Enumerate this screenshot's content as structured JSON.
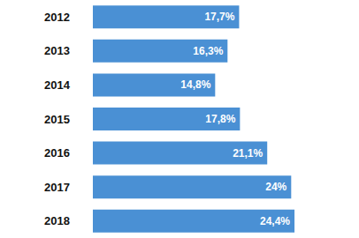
{
  "chart_data": {
    "type": "bar",
    "orientation": "horizontal",
    "categories": [
      "2012",
      "2013",
      "2014",
      "2015",
      "2016",
      "2017",
      "2018"
    ],
    "values": [
      17.7,
      16.3,
      14.8,
      17.8,
      21.1,
      24,
      24.4
    ],
    "value_labels": [
      "17,7%",
      "16,3%",
      "14,8%",
      "17,8%",
      "21,1%",
      "24%",
      "24,4%"
    ],
    "color": "#4a90d4",
    "xlim": [
      0,
      26
    ],
    "xticks": [
      0,
      26
    ],
    "grid": false,
    "data_labels": true,
    "tick_labels": "y"
  }
}
